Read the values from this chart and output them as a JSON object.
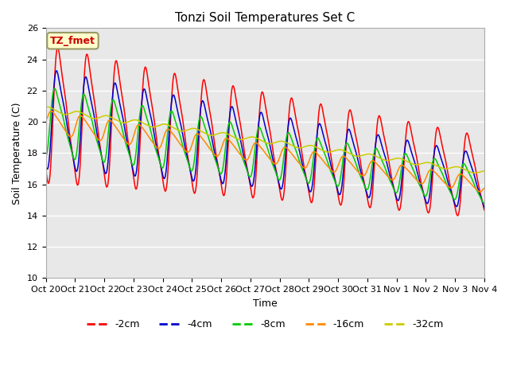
{
  "title": "Tonzi Soil Temperatures Set C",
  "xlabel": "Time",
  "ylabel": "Soil Temperature (C)",
  "ylim": [
    10,
    26
  ],
  "xlim": [
    0,
    15
  ],
  "annotation": "TZ_fmet",
  "annotation_color": "#cc0000",
  "annotation_box_color": "#ffffcc",
  "annotation_box_edge": "#999966",
  "bg_color": "#e8e8e8",
  "line_colors": {
    "-2cm": "#ff0000",
    "-4cm": "#0000cc",
    "-8cm": "#00cc00",
    "-16cm": "#ff8800",
    "-32cm": "#cccc00"
  },
  "legend_labels": [
    "-2cm",
    "-4cm",
    "-8cm",
    "-16cm",
    "-32cm"
  ],
  "tick_labels": [
    "Oct 20",
    "Oct 21",
    "Oct 22",
    "Oct 23",
    "Oct 24",
    "Oct 25",
    "Oct 26",
    "Oct 27",
    "Oct 28",
    "Oct 29",
    "Oct 30",
    "Oct 31",
    "Nov 1",
    "Nov 2",
    "Nov 3",
    "Nov 4"
  ],
  "figsize": [
    6.4,
    4.8
  ],
  "dpi": 100
}
